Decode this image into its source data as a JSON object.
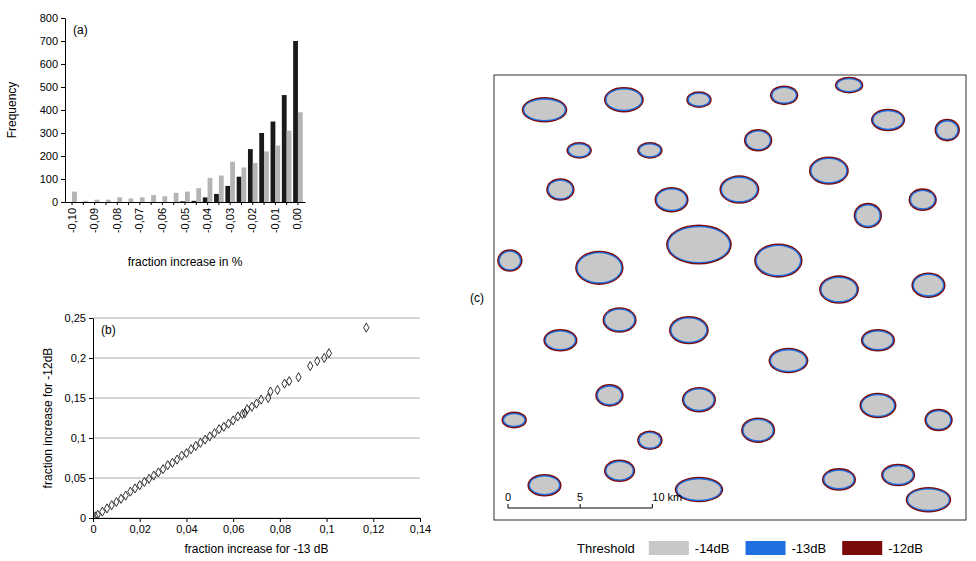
{
  "chart_data": [
    {
      "type": "bar",
      "panel": "(a)",
      "x_label": "fraction increase in %",
      "y_label": "Frequency",
      "categories": [
        "-0,10",
        null,
        "-0,09",
        null,
        "-0,08",
        null,
        "-0,07",
        null,
        "-0,06",
        null,
        "-0,05",
        null,
        "-0,04",
        null,
        "-0,03",
        null,
        "-0,02",
        null,
        "-0,01",
        null,
        "0,00"
      ],
      "series": [
        {
          "color": "#1a1a1a",
          "values": [
            0,
            0,
            0,
            0,
            0,
            0,
            0,
            0,
            0,
            0,
            3,
            5,
            20,
            35,
            70,
            110,
            230,
            300,
            350,
            465,
            700
          ]
        },
        {
          "color": "#b4b4b4",
          "values": [
            45,
            5,
            10,
            10,
            20,
            15,
            20,
            30,
            25,
            40,
            45,
            60,
            105,
            115,
            175,
            150,
            170,
            220,
            245,
            310,
            390
          ]
        }
      ],
      "ylim": [
        0,
        800
      ],
      "yticks": [
        0,
        100,
        200,
        300,
        400,
        500,
        600,
        700,
        800
      ],
      "grid": false
    },
    {
      "type": "scatter",
      "panel": "(b)",
      "x_label": "fraction increase for -13 dB",
      "y_label": "fraction increase for  -12dB",
      "x": [
        0.117,
        0.101,
        0.099,
        0.096,
        0.093,
        0.088,
        0.084,
        0.082,
        0.079,
        0.076,
        0.075,
        0.072,
        0.07,
        0.068,
        0.066,
        0.065,
        0.064,
        0.062,
        0.06,
        0.058,
        0.056,
        0.054,
        0.052,
        0.05,
        0.048,
        0.046,
        0.044,
        0.042,
        0.04,
        0.038,
        0.036,
        0.034,
        0.032,
        0.03,
        0.028,
        0.026,
        0.024,
        0.022,
        0.02,
        0.018,
        0.016,
        0.014,
        0.012,
        0.01,
        0.008,
        0.006,
        0.004,
        0.002,
        0.001,
        0
      ],
      "values": [
        0.238,
        0.206,
        0.2,
        0.196,
        0.19,
        0.176,
        0.171,
        0.168,
        0.16,
        0.158,
        0.15,
        0.148,
        0.143,
        0.139,
        0.136,
        0.131,
        0.13,
        0.127,
        0.122,
        0.118,
        0.114,
        0.111,
        0.106,
        0.102,
        0.098,
        0.094,
        0.09,
        0.086,
        0.081,
        0.078,
        0.073,
        0.069,
        0.066,
        0.061,
        0.057,
        0.053,
        0.049,
        0.045,
        0.041,
        0.037,
        0.033,
        0.028,
        0.024,
        0.02,
        0.016,
        0.012,
        0.008,
        0.004,
        0.002,
        0
      ],
      "color": "#000000",
      "marker": "diamond",
      "xlim": [
        0,
        0.14
      ],
      "xticks": [
        0,
        {
          "value": 0.02,
          "label": "0,02"
        },
        {
          "value": 0.04,
          "label": "0,04"
        },
        {
          "value": 0.06,
          "label": "0,06"
        },
        {
          "value": 0.08,
          "label": "0,08"
        },
        {
          "value": 0.1,
          "label": "0,1"
        },
        {
          "value": 0.12,
          "label": "0,12"
        },
        {
          "value": 0.14,
          "label": "0,14"
        }
      ],
      "ylim": [
        0,
        0.25
      ],
      "yticks": [
        0,
        {
          "value": 0.05,
          "label": "0,05"
        },
        {
          "value": 0.1,
          "label": "0,1"
        },
        {
          "value": 0.15,
          "label": "0,15"
        },
        {
          "value": 0.2,
          "label": "0,2"
        },
        {
          "value": 0.25,
          "label": "0,25"
        }
      ],
      "grid": true
    },
    {
      "type": "map",
      "panel": "(c)",
      "legend_title": "Threshold",
      "legend": "bottom",
      "series": [
        {
          "name": "-14dB",
          "color": "#c8c8c8"
        },
        {
          "name": "-13dB",
          "color": "#1f6fe0"
        },
        {
          "name": "-12dB",
          "color": "#7b0a0a"
        }
      ],
      "xlim": [
        0,
        32.7
      ],
      "ylim": [
        0,
        30.7
      ],
      "xticks": [
        0,
        5,
        {
          "value": 10,
          "label": "10 km"
        }
      ],
      "lakes": {
        "x": [
          14.2,
          19.7,
          7.3,
          3.5,
          9.0,
          12.3,
          17.0,
          23.2,
          25.9,
          29.7,
          30.1,
          23.9,
          8.7,
          13.5,
          4.6,
          26.6,
          20.4,
          14.2,
          8.0,
          26.6,
          30.8,
          18.3,
          14.2,
          3.5,
          8.7,
          23.9,
          28.0,
          30.1,
          4.6,
          1.1,
          10.8,
          18.3,
          27.3,
          20.1,
          24.6,
          14.2,
          5.9,
          1.4,
          10.8,
          31.4
        ],
        "y": [
          19.0,
          17.9,
          17.4,
          28.3,
          29.0,
          22.1,
          22.8,
          24.1,
          21.0,
          22.1,
          16.2,
          15.9,
          13.8,
          13.1,
          12.4,
          12.4,
          11.0,
          8.3,
          8.6,
          7.9,
          6.9,
          6.2,
          2.1,
          2.4,
          3.4,
          2.8,
          3.1,
          1.4,
          22.8,
          17.9,
          25.5,
          26.2,
          27.6,
          29.3,
          30.0,
          29.0,
          25.5,
          6.9,
          5.5,
          26.9
        ],
        "rx": [
          2.1,
          1.5,
          1.5,
          1.4,
          1.2,
          1.0,
          1.2,
          1.2,
          0.8,
          0.8,
          1.0,
          1.2,
          1.0,
          1.2,
          1.0,
          1.0,
          1.2,
          1.0,
          0.8,
          1.1,
          0.8,
          1.0,
          1.5,
          1.0,
          0.9,
          1.0,
          1.0,
          1.4,
          0.8,
          0.7,
          0.7,
          0.8,
          1.0,
          0.8,
          0.8,
          0.7,
          0.7,
          0.7,
          0.7,
          0.7
        ],
        "ry": [
          1.2,
          1.0,
          1.0,
          0.7,
          0.7,
          0.7,
          0.8,
          0.8,
          0.7,
          0.6,
          0.7,
          0.8,
          0.7,
          0.8,
          0.6,
          0.6,
          0.7,
          0.7,
          0.6,
          0.7,
          0.6,
          0.7,
          0.7,
          0.6,
          0.6,
          0.6,
          0.6,
          0.7,
          0.6,
          0.6,
          0.4,
          0.6,
          0.6,
          0.5,
          0.4,
          0.4,
          0.4,
          0.4,
          0.5,
          0.6
        ]
      }
    }
  ]
}
